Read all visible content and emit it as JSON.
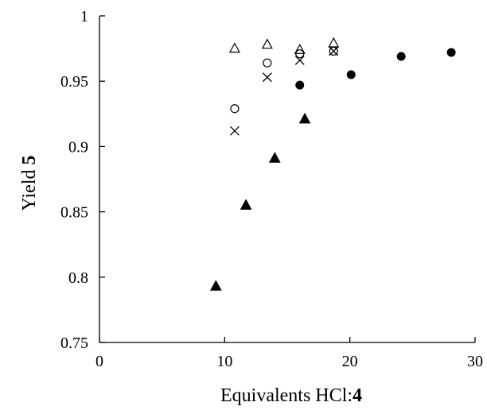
{
  "chart_data": {
    "type": "scatter",
    "title": "",
    "xlabel": {
      "text": "Equivalents HCl:",
      "bold_suffix": "4"
    },
    "ylabel": {
      "text": "Yield ",
      "bold_suffix": "5"
    },
    "xlim": [
      0,
      30
    ],
    "ylim": [
      0.75,
      1.0
    ],
    "x_ticks": [
      0,
      10,
      20,
      30
    ],
    "y_ticks": [
      0.75,
      0.8,
      0.85,
      0.9,
      0.95,
      1.0
    ],
    "x_tick_labels": [
      "0",
      "10",
      "20",
      "30"
    ],
    "y_tick_labels": [
      "0.75",
      "0.8",
      "0.85",
      "0.9",
      "0.95",
      "1"
    ],
    "grid": false,
    "legend": "none",
    "series": [
      {
        "marker": "filled-triangle",
        "color": "#000000",
        "points": [
          [
            9.3,
            0.793
          ],
          [
            11.7,
            0.855
          ],
          [
            14.0,
            0.891
          ],
          [
            16.4,
            0.921
          ]
        ]
      },
      {
        "marker": "filled-circle",
        "color": "#000000",
        "points": [
          [
            16.0,
            0.947
          ],
          [
            20.1,
            0.955
          ],
          [
            24.1,
            0.969
          ],
          [
            28.1,
            0.972
          ]
        ]
      },
      {
        "marker": "open-circle",
        "color": "#000000",
        "points": [
          [
            10.8,
            0.929
          ],
          [
            13.4,
            0.964
          ],
          [
            16.0,
            0.971
          ],
          [
            18.7,
            0.973
          ]
        ]
      },
      {
        "marker": "cross",
        "color": "#000000",
        "points": [
          [
            10.8,
            0.912
          ],
          [
            13.4,
            0.953
          ],
          [
            16.0,
            0.966
          ],
          [
            18.7,
            0.973
          ]
        ]
      },
      {
        "marker": "open-triangle",
        "color": "#000000",
        "points": [
          [
            10.8,
            0.975
          ],
          [
            13.4,
            0.978
          ],
          [
            16.0,
            0.974
          ],
          [
            18.7,
            0.979
          ]
        ]
      }
    ]
  }
}
